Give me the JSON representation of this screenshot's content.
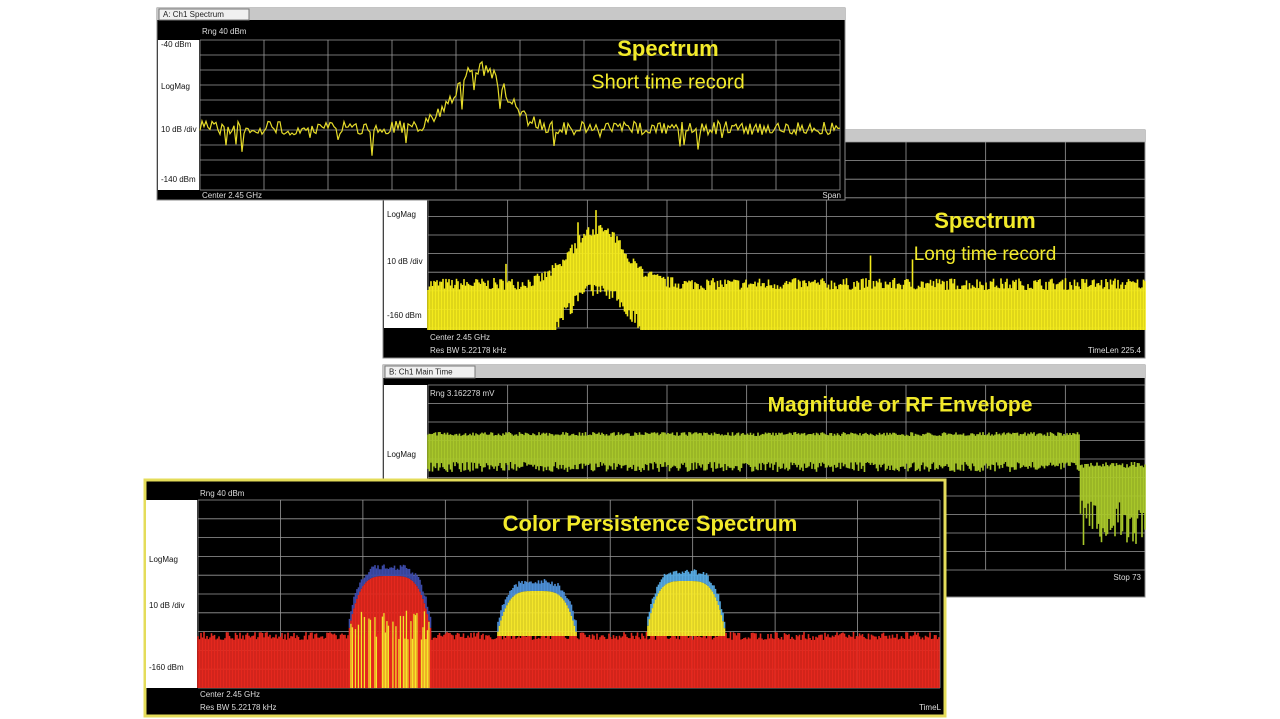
{
  "panels": [
    {
      "tab": "A: Ch1 Spectrum",
      "range": "Rng 40 dBm",
      "left_labels": [
        "-40 dBm",
        "LogMag",
        "10 dB /div",
        "-140 dBm"
      ],
      "footer_left": [
        "Center 2.45 GHz"
      ],
      "footer_right": "Span",
      "overlay_title": "Spectrum",
      "overlay_subtitle": "Short time record"
    },
    {
      "left_labels": [
        "LogMag",
        "10 dB /div",
        "-160 dBm"
      ],
      "footer_left": [
        "Center 2.45 GHz",
        "Res BW 5.22178 kHz"
      ],
      "footer_right": "TimeLen 225.4",
      "overlay_title": "Spectrum",
      "overlay_subtitle": "Long time record"
    },
    {
      "tab": "B: Ch1 Main Time",
      "range": "Rng 3.162278 mV",
      "left_labels": [
        "LogMag"
      ],
      "footer_right": "Stop 73",
      "overlay_title": "Magnitude or RF Envelope"
    },
    {
      "range": "Rng 40 dBm",
      "left_labels": [
        "LogMag",
        "10 dB /div",
        "-160 dBm"
      ],
      "footer_left": [
        "Center 2.45 GHz",
        "Res BW 5.22178 kHz"
      ],
      "footer_right": "TimeL",
      "overlay_title": "Color Persistence Spectrum"
    }
  ]
}
